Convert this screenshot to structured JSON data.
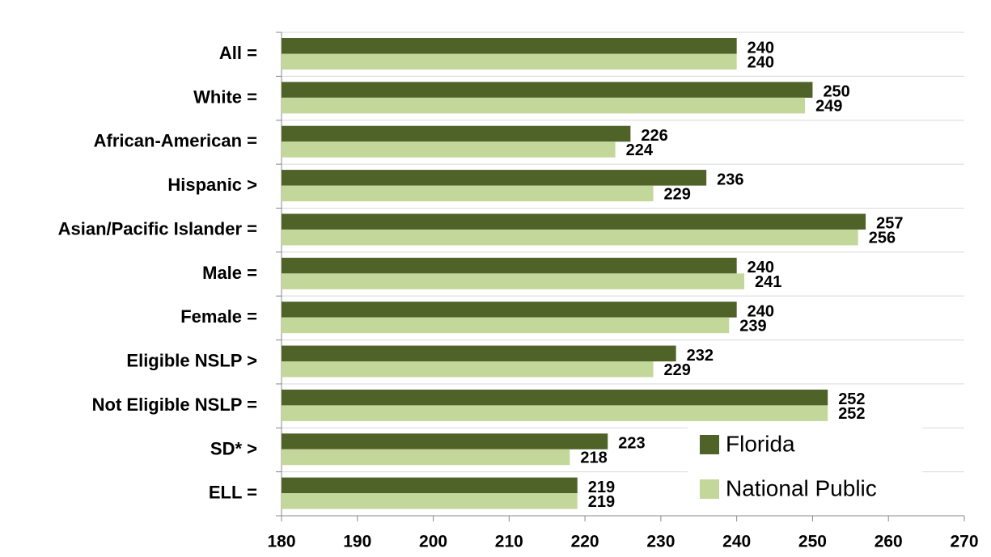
{
  "chart_data": {
    "type": "barh",
    "categories": [
      "All =",
      "White =",
      "African-American =",
      "Hispanic >",
      "Asian/Pacific Islander =",
      "Male =",
      "Female =",
      "Eligible NSLP >",
      "Not Eligible NSLP =",
      "SD* >",
      "ELL ="
    ],
    "series": [
      {
        "name": "Florida",
        "color": "#4f6228",
        "values": [
          240,
          250,
          226,
          236,
          257,
          240,
          240,
          232,
          252,
          223,
          219
        ]
      },
      {
        "name": "National Public",
        "color": "#c4d79b",
        "values": [
          240,
          249,
          224,
          229,
          256,
          241,
          239,
          229,
          252,
          218,
          219
        ]
      }
    ],
    "xlim": [
      180,
      270
    ],
    "xticks": [
      180,
      190,
      200,
      210,
      220,
      230,
      240,
      250,
      260,
      270
    ],
    "grid": true,
    "legend": "lower right"
  }
}
